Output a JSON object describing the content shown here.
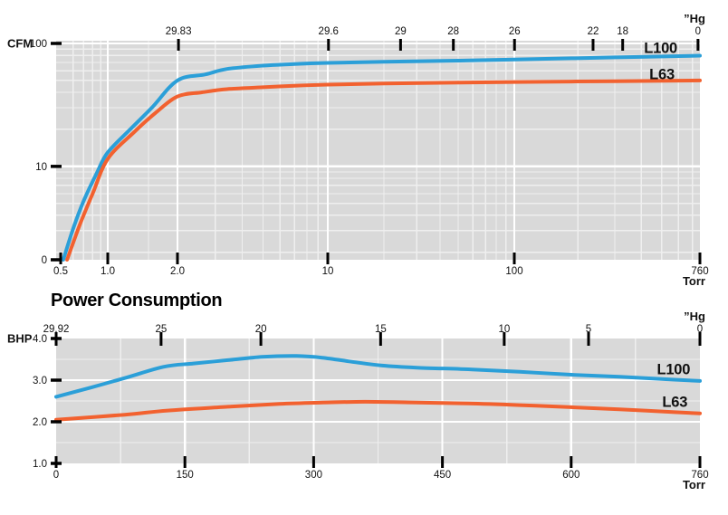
{
  "colors": {
    "plot_bg": "#d9d9d9",
    "grid_major": "#ffffff",
    "grid_minor": "#ffffff",
    "tick": "#000000",
    "text": "#111111",
    "l100": "#2b9fd8",
    "l63": "#f2612f"
  },
  "chart_data": [
    {
      "id": "pumping-speed",
      "type": "line",
      "y_axis_label": "CFM",
      "x_axis_label": "Torr",
      "top_axis_label": "”Hg",
      "x_scale": "log",
      "x_ticks": [
        {
          "v": 0.5,
          "label": "0.5"
        },
        {
          "v": 1,
          "label": "1.0"
        },
        {
          "v": 2,
          "label": "2.0"
        },
        {
          "v": 10,
          "label": "10"
        },
        {
          "v": 100,
          "label": "100"
        },
        {
          "v": 760,
          "label": "760"
        }
      ],
      "x_minor": [
        0.6,
        0.7,
        0.8,
        0.9,
        1.5,
        3,
        4,
        5,
        6,
        7,
        8,
        9,
        20,
        30,
        40,
        50,
        60,
        70,
        80,
        90,
        200,
        300,
        400,
        500,
        600,
        700
      ],
      "x_anchors": [
        [
          0.5,
          0.00703
        ],
        [
          1,
          0.08017
        ],
        [
          2,
          0.18846
        ],
        [
          10,
          0.42194
        ],
        [
          100,
          0.71168
        ],
        [
          760,
          1
        ]
      ],
      "y_scale": "log",
      "y_log_top": 105.2,
      "y_log_bottom": 1.74,
      "y_ticks": [
        {
          "v": 100,
          "label": "100"
        },
        {
          "v": 10,
          "label": "10"
        },
        {
          "v": "bottom",
          "label": "0"
        }
      ],
      "y_minor": [
        90,
        80,
        70,
        60,
        50,
        40,
        30,
        20,
        9,
        8,
        7,
        6,
        5,
        4,
        3,
        2
      ],
      "top_ticks": [
        {
          "label": "29.83",
          "f": 0.19
        },
        {
          "label": "29.6",
          "f": 0.423
        },
        {
          "label": "29",
          "f": 0.535
        },
        {
          "label": "28",
          "f": 0.617
        },
        {
          "label": "26",
          "f": 0.712
        },
        {
          "label": "22",
          "f": 0.834
        },
        {
          "label": "18",
          "f": 0.88
        },
        {
          "label": "0",
          "f": 0.997
        }
      ],
      "series": [
        {
          "name": "L100",
          "color_key": "l100",
          "label_pos": [
            0.939,
            0.033
          ],
          "points": [
            [
              0.52,
              1.74
            ],
            [
              0.6,
              3.1
            ],
            [
              0.7,
              5.2
            ],
            [
              0.85,
              8.8
            ],
            [
              1,
              13
            ],
            [
              1.25,
              20
            ],
            [
              1.55,
              30
            ],
            [
              2,
              50
            ],
            [
              2.7,
              56
            ],
            [
              3.4,
              62
            ],
            [
              5,
              66
            ],
            [
              7,
              68
            ],
            [
              10,
              69.5
            ],
            [
              20,
              71
            ],
            [
              50,
              72.5
            ],
            [
              100,
              74
            ],
            [
              300,
              77
            ],
            [
              760,
              79.5
            ]
          ]
        },
        {
          "name": "L63",
          "color_key": "l63",
          "label_pos": [
            0.941,
            0.153
          ],
          "points": [
            [
              0.55,
              1.74
            ],
            [
              0.66,
              3.3
            ],
            [
              0.8,
              6
            ],
            [
              1,
              11.5
            ],
            [
              1.3,
              19
            ],
            [
              1.6,
              27
            ],
            [
              2,
              37
            ],
            [
              2.6,
              40
            ],
            [
              3.4,
              42.5
            ],
            [
              5,
              44
            ],
            [
              7,
              45.3
            ],
            [
              10,
              46.2
            ],
            [
              20,
              47.2
            ],
            [
              50,
              48
            ],
            [
              100,
              48.6
            ],
            [
              300,
              49.3
            ],
            [
              760,
              50
            ]
          ]
        }
      ]
    },
    {
      "id": "power-consumption",
      "title": "Power Consumption",
      "type": "line",
      "y_axis_label": "BHP",
      "x_axis_label": "Torr",
      "top_axis_label": "”Hg",
      "x_scale": "linear",
      "x_ticks": [
        {
          "v": 0,
          "label": "0"
        },
        {
          "v": 150,
          "label": "150"
        },
        {
          "v": 300,
          "label": "300"
        },
        {
          "v": 450,
          "label": "450"
        },
        {
          "v": 600,
          "label": "600"
        },
        {
          "v": 760,
          "label": "760"
        }
      ],
      "x_minor": [
        75,
        225,
        375,
        525,
        680
      ],
      "x_anchors": [
        [
          0,
          0
        ],
        [
          150,
          0.2
        ],
        [
          300,
          0.4
        ],
        [
          450,
          0.6
        ],
        [
          600,
          0.8
        ],
        [
          760,
          1
        ]
      ],
      "y_range": [
        1,
        4
      ],
      "y_ticks": [
        {
          "v": 4,
          "label": "4.0"
        },
        {
          "v": 3,
          "label": "3.0"
        },
        {
          "v": 2,
          "label": "2.0"
        },
        {
          "v": 1,
          "label": "1.0"
        }
      ],
      "y_minor": [
        3.5,
        2.5,
        1.5
      ],
      "top_ticks": [
        {
          "label": "29.92",
          "f": 0
        },
        {
          "label": "25",
          "f": 0.163
        },
        {
          "label": "20",
          "f": 0.318
        },
        {
          "label": "15",
          "f": 0.504
        },
        {
          "label": "10",
          "f": 0.696
        },
        {
          "label": "5",
          "f": 0.827
        },
        {
          "label": "0",
          "f": 1
        }
      ],
      "series": [
        {
          "name": "L100",
          "color_key": "l100",
          "label_pos": [
            0.959,
            0.245
          ],
          "points": [
            [
              0,
              2.6
            ],
            [
              40,
              2.82
            ],
            [
              80,
              3.05
            ],
            [
              125,
              3.32
            ],
            [
              160,
              3.4
            ],
            [
              200,
              3.48
            ],
            [
              240,
              3.56
            ],
            [
              280,
              3.58
            ],
            [
              310,
              3.54
            ],
            [
              345,
              3.44
            ],
            [
              380,
              3.35
            ],
            [
              420,
              3.3
            ],
            [
              480,
              3.26
            ],
            [
              540,
              3.2
            ],
            [
              600,
              3.13
            ],
            [
              660,
              3.08
            ],
            [
              710,
              3.03
            ],
            [
              760,
              2.98
            ]
          ]
        },
        {
          "name": "L63",
          "color_key": "l63",
          "label_pos": [
            0.961,
            0.507
          ],
          "points": [
            [
              0,
              2.05
            ],
            [
              80,
              2.17
            ],
            [
              130,
              2.27
            ],
            [
              200,
              2.36
            ],
            [
              260,
              2.43
            ],
            [
              310,
              2.46
            ],
            [
              360,
              2.48
            ],
            [
              420,
              2.46
            ],
            [
              480,
              2.44
            ],
            [
              540,
              2.4
            ],
            [
              600,
              2.35
            ],
            [
              660,
              2.3
            ],
            [
              710,
              2.25
            ],
            [
              760,
              2.2
            ]
          ]
        }
      ]
    }
  ]
}
